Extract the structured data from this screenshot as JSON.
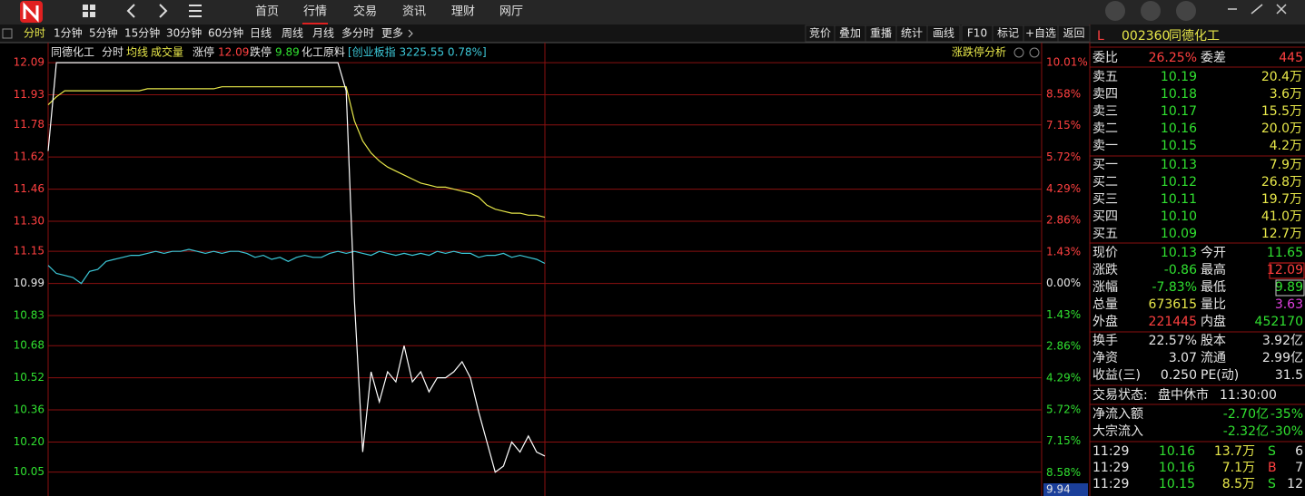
{
  "top_bar": {
    "menu": [
      "首页",
      "行情",
      "交易",
      "资讯",
      "理财",
      "网厅"
    ]
  },
  "toolbar": {
    "tabs": [
      "分时",
      "1分钟",
      "5分钟",
      "15分钟",
      "30分钟",
      "60分钟",
      "日线",
      "周线",
      "月线",
      "多分时",
      "更多"
    ],
    "tools": [
      "竞价",
      "叠加",
      "重播",
      "统计",
      "画线",
      "F10",
      "标记",
      "+自选",
      "返回"
    ]
  },
  "chart": {
    "type": "line",
    "header": {
      "name": "同德化工",
      "mode": "分时",
      "avg": "均线",
      "volume": "成交量",
      "limit_up_label": "涨停",
      "limit_up": "12.09",
      "limit_down_label": "跌停",
      "limit_down": "9.89",
      "sector": "化工原料",
      "index": "[创业板指 3225.55 0.78%]"
    },
    "analysis": "涨跌停分析",
    "ylim": [
      9.94,
      12.19
    ],
    "yticks": [
      12.09,
      11.93,
      11.78,
      11.62,
      11.46,
      {
        "value": 11.3,
        "label": "11.30"
      },
      11.15,
      10.99,
      10.83,
      10.68,
      10.52,
      10.36,
      {
        "value": 10.2,
        "label": "10.20"
      },
      10.05
    ],
    "y2lim": [
      -9.55,
      10.92
    ],
    "y2ticks": [
      {
        "value": 10.01,
        "label": "10.01%"
      },
      {
        "value": 8.58,
        "label": "8.58%"
      },
      {
        "value": 7.15,
        "label": "7.15%"
      },
      {
        "value": 5.72,
        "label": "5.72%"
      },
      {
        "value": 4.29,
        "label": "4.29%"
      },
      {
        "value": 2.86,
        "label": "2.86%"
      },
      {
        "value": 1.43,
        "label": "1.43%"
      },
      {
        "value": 0,
        "label": "0.00%"
      },
      {
        "value": -1.43,
        "label": "1.43%"
      },
      {
        "value": -2.86,
        "label": "2.86%"
      },
      {
        "value": -4.29,
        "label": "4.29%"
      },
      {
        "value": -5.72,
        "label": "5.72%"
      },
      {
        "value": -7.15,
        "label": "7.15%"
      },
      {
        "value": -8.58,
        "label": "8.58%"
      }
    ],
    "series": [
      {
        "color": "#3cc8d8",
        "values": [
          11.08,
          11.04,
          11.03,
          11.02,
          10.99,
          11.05,
          11.06,
          11.1,
          11.11,
          11.12,
          11.13,
          11.13,
          11.14,
          11.15,
          11.14,
          11.15,
          11.15,
          11.16,
          11.15,
          11.14,
          11.15,
          11.14,
          11.15,
          11.15,
          11.14,
          11.12,
          11.13,
          11.11,
          11.12,
          11.1,
          11.12,
          11.13,
          11.12,
          11.12,
          11.14,
          11.15,
          11.14,
          11.15,
          11.14,
          11.13,
          11.15,
          11.14,
          11.13,
          11.14,
          11.13,
          11.14,
          11.13,
          11.15,
          11.14,
          11.15,
          11.14,
          11.14,
          11.12,
          11.13,
          11.13,
          11.14,
          11.12,
          11.13,
          11.12,
          11.11,
          11.09
        ]
      },
      {
        "color": "#e8e84a",
        "values": [
          11.88,
          11.92,
          11.95,
          11.95,
          11.95,
          11.95,
          11.95,
          11.95,
          11.95,
          11.95,
          11.95,
          11.95,
          11.96,
          11.96,
          11.96,
          11.96,
          11.96,
          11.96,
          11.96,
          11.96,
          11.96,
          11.97,
          11.97,
          11.97,
          11.97,
          11.97,
          11.97,
          11.97,
          11.97,
          11.97,
          11.97,
          11.97,
          11.97,
          11.97,
          11.97,
          11.97,
          11.97,
          11.8,
          11.7,
          11.64,
          11.6,
          11.57,
          11.55,
          11.53,
          11.51,
          11.49,
          11.48,
          11.47,
          11.47,
          11.46,
          11.45,
          11.44,
          11.42,
          11.38,
          11.36,
          11.35,
          11.34,
          11.34,
          11.33,
          11.33,
          11.32
        ]
      },
      {
        "color": "#ffffff",
        "values": [
          11.65,
          12.09,
          12.09,
          12.09,
          12.09,
          12.09,
          12.09,
          12.09,
          12.09,
          12.09,
          12.09,
          12.09,
          12.09,
          12.09,
          12.09,
          12.09,
          12.09,
          12.09,
          12.09,
          12.09,
          12.09,
          12.09,
          12.09,
          12.09,
          12.09,
          12.09,
          12.09,
          12.09,
          12.09,
          12.09,
          12.09,
          12.09,
          12.09,
          12.09,
          12.09,
          12.09,
          11.95,
          10.9,
          10.15,
          10.55,
          10.4,
          10.55,
          10.5,
          10.68,
          10.5,
          10.55,
          10.45,
          10.52,
          10.52,
          10.55,
          10.6,
          10.52,
          10.35,
          10.2,
          10.05,
          10.08,
          10.2,
          10.15,
          10.23,
          10.15,
          10.13
        ]
      }
    ],
    "cursor": "9.94"
  },
  "quote": {
    "flag": "L",
    "code": "002360",
    "name": "同德化工",
    "order_ratio": [
      "委比",
      "26.25%",
      "委差",
      "445"
    ],
    "asks": [
      [
        "卖五",
        "10.19",
        "20.4万"
      ],
      [
        "卖四",
        "10.18",
        "3.6万"
      ],
      [
        "卖三",
        "10.17",
        "15.5万"
      ],
      [
        "卖二",
        "10.16",
        "20.0万"
      ],
      [
        "卖一",
        "10.15",
        "4.2万"
      ]
    ],
    "bids": [
      [
        "买一",
        "10.13",
        "7.9万"
      ],
      [
        "买二",
        "10.12",
        "26.8万"
      ],
      [
        "买三",
        "10.11",
        "19.7万"
      ],
      [
        "买四",
        "10.10",
        "41.0万"
      ],
      [
        "买五",
        "10.09",
        "12.7万"
      ]
    ],
    "stats": [
      [
        "现价",
        "10.13",
        "今开",
        "11.65"
      ],
      [
        "涨跌",
        "-0.86",
        "最高",
        "12.09"
      ],
      [
        "涨幅",
        "-7.83%",
        "最低",
        "9.89"
      ],
      [
        "总量",
        "673615",
        "量比",
        "3.63"
      ],
      [
        "外盘",
        "221445",
        "内盘",
        "452170"
      ]
    ],
    "fundamentals": [
      [
        "换手",
        "22.57%",
        "股本",
        "3.92亿"
      ],
      [
        "净资",
        "3.07",
        "流通",
        "2.99亿"
      ],
      [
        "收益(三)",
        "0.250",
        "PE(动)",
        "31.5"
      ]
    ],
    "status": [
      "交易状态:",
      "盘中休市",
      "11:30:00"
    ],
    "flows": [
      [
        "净流入额",
        "-2.70亿",
        "-35%"
      ],
      [
        "大宗流入",
        "-2.32亿",
        "-30%"
      ]
    ],
    "trades": [
      [
        "11:29",
        "10.16",
        "13.7万",
        "S",
        "6"
      ],
      [
        "11:29",
        "10.16",
        "7.1万",
        "B",
        "7"
      ],
      [
        "11:29",
        "10.15",
        "8.5万",
        "S",
        "12"
      ]
    ]
  }
}
